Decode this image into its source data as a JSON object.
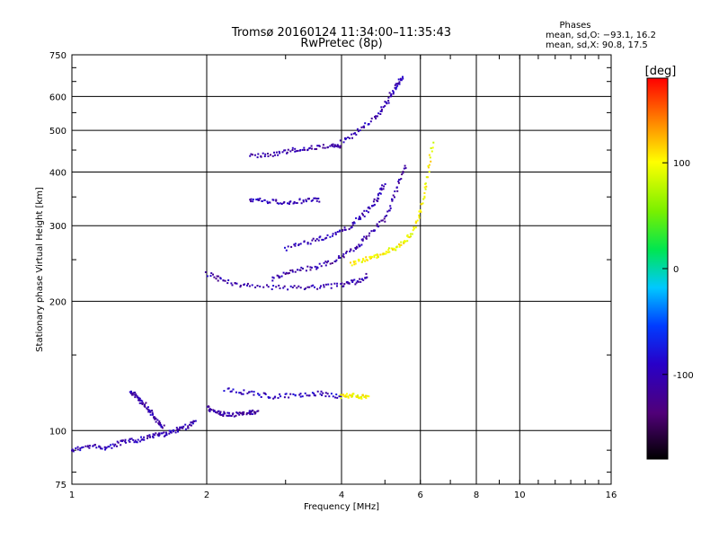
{
  "chart_data": {
    "type": "scatter",
    "title": "Tromsø 20160124 11:34:00–11:35:43",
    "subtitle": "RwPretec (8p)",
    "xlabel": "Frequency [MHz]",
    "ylabel": "Stationary phase Virtual Height [km]",
    "x_scale": "log",
    "y_scale": "log",
    "xlim": [
      1,
      16
    ],
    "ylim": [
      75,
      750
    ],
    "x_ticks": [
      1,
      2,
      4,
      6,
      8,
      10,
      16
    ],
    "y_ticks": [
      75,
      100,
      200,
      300,
      400,
      500,
      600,
      750
    ],
    "grid": true,
    "phases_box": {
      "title": "Phases",
      "line_o": "mean, sd,O: −93.1, 16.2",
      "line_x": "mean, sd,X:  90.8, 17.5"
    },
    "colorbar": {
      "label": "[deg]",
      "range": [
        -180,
        180
      ],
      "ticks": [
        100,
        0,
        -100
      ],
      "colormap": "rainbow (black-purple-blue-cyan-green-yellow-red)"
    },
    "series": [
      {
        "traces": [
          {
            "x": [
              1.0,
              1.1,
              1.2,
              1.3,
              1.4,
              1.5,
              1.6,
              1.7,
              1.8,
              1.9
            ],
            "y": [
              90,
              92,
              91,
              94,
              95,
              97,
              98,
              100,
              102,
              105
            ],
            "phase": -100
          },
          {
            "x": [
              1.35,
              1.4,
              1.45,
              1.5,
              1.55,
              1.6
            ],
            "y": [
              123,
              120,
              115,
              110,
              105,
              102
            ],
            "phase": -105
          },
          {
            "x": [
              2.0,
              2.1,
              2.2,
              2.35,
              2.5,
              2.6
            ],
            "y": [
              113,
              110,
              109,
              109,
              110,
              111
            ],
            "phase": -110
          },
          {
            "x": [
              2.2,
              2.5,
              2.8,
              3.2,
              3.6,
              4.0
            ],
            "y": [
              125,
              122,
              120,
              121,
              122,
              120
            ],
            "phase": -95
          },
          {
            "x": [
              4.0,
              4.2,
              4.4,
              4.6
            ],
            "y": [
              120,
              121,
              120,
              119
            ],
            "phase": 100
          },
          {
            "x": [
              2.0,
              2.2,
              2.5,
              3.0,
              3.5,
              4.0,
              4.3,
              4.6
            ],
            "y": [
              232,
              222,
              217,
              215,
              216,
              218,
              222,
              230
            ],
            "phase": -105
          },
          {
            "x": [
              2.8,
              3.1,
              3.5,
              3.9,
              4.3,
              4.6,
              5.0,
              5.3,
              5.6
            ],
            "y": [
              225,
              235,
              240,
              250,
              265,
              285,
              310,
              360,
              420
            ],
            "phase": -110
          },
          {
            "x": [
              3.0,
              3.4,
              3.8,
              4.2,
              4.5,
              4.8,
              5.0
            ],
            "y": [
              265,
              275,
              285,
              300,
              320,
              345,
              380
            ],
            "phase": -100
          },
          {
            "x": [
              4.2,
              4.5,
              4.8,
              5.1,
              5.4,
              5.7,
              6.0,
              6.2,
              6.4
            ],
            "y": [
              245,
              250,
              255,
              262,
              270,
              285,
              320,
              380,
              470
            ],
            "phase": 100
          },
          {
            "x": [
              2.5,
              2.7,
              3.0,
              3.3,
              3.6
            ],
            "y": [
              345,
              342,
              340,
              343,
              345
            ],
            "phase": -100
          },
          {
            "x": [
              2.5,
              2.8,
              3.1,
              3.4,
              3.8,
              4.0
            ],
            "y": [
              435,
              440,
              450,
              455,
              460,
              460
            ],
            "phase": -110
          },
          {
            "x": [
              4.0,
              4.4,
              4.8,
              5.1,
              5.3,
              5.5
            ],
            "y": [
              470,
              500,
              540,
              590,
              640,
              660
            ],
            "phase": -100
          }
        ]
      }
    ]
  }
}
